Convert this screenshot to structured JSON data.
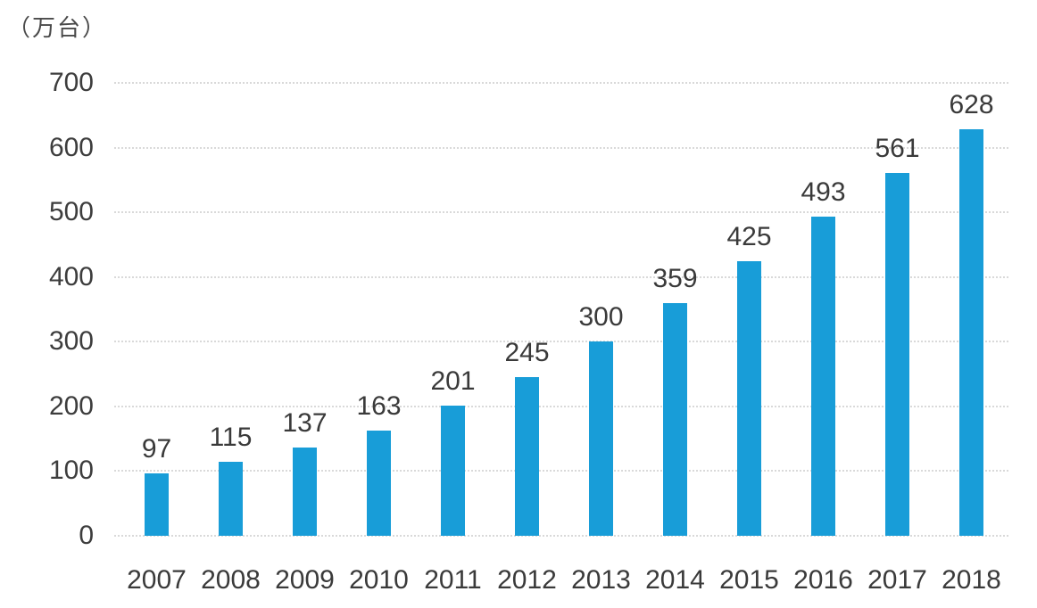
{
  "chart_data": {
    "type": "bar",
    "title": "",
    "unit_label": "（万台）",
    "categories": [
      "2007",
      "2008",
      "2009",
      "2010",
      "2011",
      "2012",
      "2013",
      "2014",
      "2015",
      "2016",
      "2017",
      "2018"
    ],
    "values": [
      97,
      115,
      137,
      163,
      201,
      245,
      300,
      359,
      425,
      493,
      561,
      628
    ],
    "yticks": [
      0,
      100,
      200,
      300,
      400,
      500,
      600,
      700
    ],
    "ylim": [
      0,
      700
    ],
    "xlabel": "",
    "ylabel": "（万台）",
    "bar_color": "#189dd8",
    "grid": "horizontal-dotted",
    "gridline_color": "#d9d9d9",
    "text_color": "#3a3a3a",
    "legend": "none",
    "data_labels": "above-bars"
  }
}
